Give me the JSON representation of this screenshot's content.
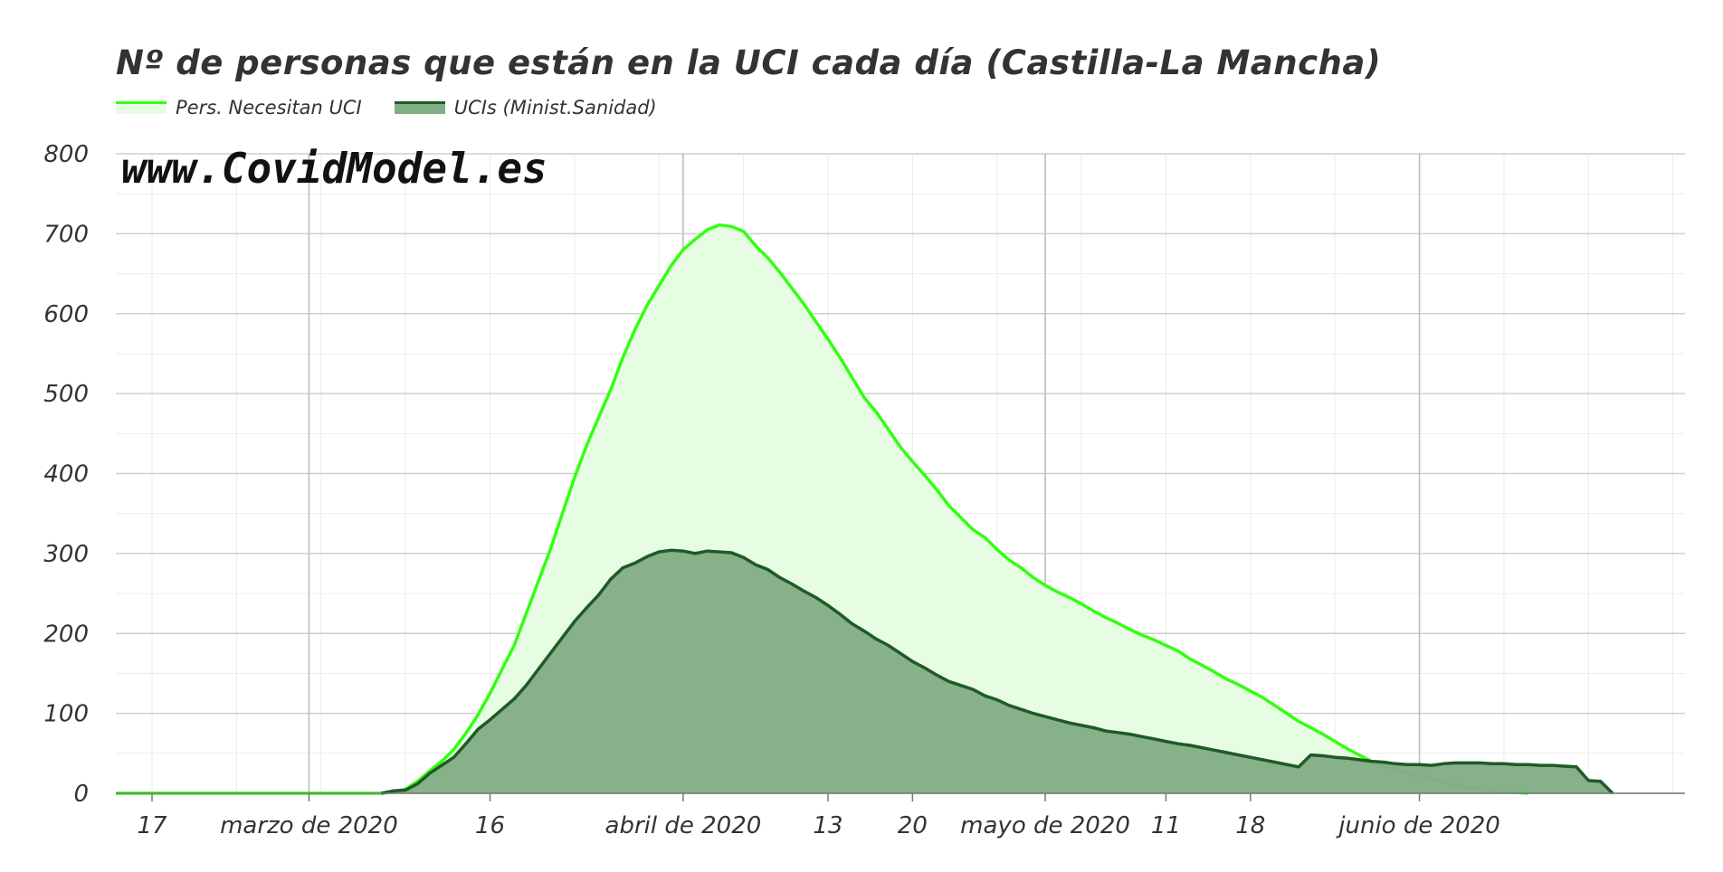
{
  "chart_data": {
    "type": "area",
    "title": "Nº de personas que están en la UCI cada día (Castilla-La Mancha)",
    "watermark": "www.CovidModel.es",
    "legend_position": "top-left",
    "grid": true,
    "ylim": [
      0,
      800
    ],
    "y_ticks": [
      0,
      100,
      200,
      300,
      400,
      500,
      600,
      700,
      800
    ],
    "xlim": [
      "2020-02-14",
      "2020-06-23"
    ],
    "x_ticks": [
      {
        "date": "2020-02-17",
        "label": "17"
      },
      {
        "date": "2020-03-01",
        "label": "marzo de 2020"
      },
      {
        "date": "2020-03-16",
        "label": "16"
      },
      {
        "date": "2020-04-01",
        "label": "abril de 2020"
      },
      {
        "date": "2020-04-13",
        "label": "13"
      },
      {
        "date": "2020-04-20",
        "label": "20"
      },
      {
        "date": "2020-05-01",
        "label": "mayo de 2020"
      },
      {
        "date": "2020-05-11",
        "label": "11"
      },
      {
        "date": "2020-05-18",
        "label": "18"
      },
      {
        "date": "2020-06-01",
        "label": "junio de 2020"
      }
    ],
    "series": [
      {
        "name": "Pers. Necesitan UCI",
        "line_color": "#33ff11",
        "fill_color": "#e6fde3",
        "points": [
          [
            "2020-02-14",
            0
          ],
          [
            "2020-03-07",
            0
          ],
          [
            "2020-03-08",
            2
          ],
          [
            "2020-03-09",
            5
          ],
          [
            "2020-03-10",
            15
          ],
          [
            "2020-03-11",
            28
          ],
          [
            "2020-03-12",
            40
          ],
          [
            "2020-03-13",
            55
          ],
          [
            "2020-03-14",
            75
          ],
          [
            "2020-03-15",
            98
          ],
          [
            "2020-03-16",
            125
          ],
          [
            "2020-03-17",
            155
          ],
          [
            "2020-03-18",
            185
          ],
          [
            "2020-03-19",
            225
          ],
          [
            "2020-03-20",
            265
          ],
          [
            "2020-03-21",
            305
          ],
          [
            "2020-03-22",
            350
          ],
          [
            "2020-03-23",
            395
          ],
          [
            "2020-03-24",
            435
          ],
          [
            "2020-03-25",
            470
          ],
          [
            "2020-03-26",
            505
          ],
          [
            "2020-03-27",
            545
          ],
          [
            "2020-03-28",
            580
          ],
          [
            "2020-03-29",
            610
          ],
          [
            "2020-03-30",
            635
          ],
          [
            "2020-03-31",
            660
          ],
          [
            "2020-04-01",
            680
          ],
          [
            "2020-04-02",
            693
          ],
          [
            "2020-04-03",
            705
          ],
          [
            "2020-04-04",
            711
          ],
          [
            "2020-04-05",
            709
          ],
          [
            "2020-04-06",
            703
          ],
          [
            "2020-04-07",
            685
          ],
          [
            "2020-04-08",
            670
          ],
          [
            "2020-04-09",
            652
          ],
          [
            "2020-04-10",
            632
          ],
          [
            "2020-04-11",
            612
          ],
          [
            "2020-04-12",
            590
          ],
          [
            "2020-04-13",
            568
          ],
          [
            "2020-04-14",
            545
          ],
          [
            "2020-04-15",
            520
          ],
          [
            "2020-04-16",
            495
          ],
          [
            "2020-04-17",
            477
          ],
          [
            "2020-04-18",
            455
          ],
          [
            "2020-04-19",
            433
          ],
          [
            "2020-04-20",
            415
          ],
          [
            "2020-04-21",
            398
          ],
          [
            "2020-04-22",
            380
          ],
          [
            "2020-04-23",
            360
          ],
          [
            "2020-04-24",
            345
          ],
          [
            "2020-04-25",
            330
          ],
          [
            "2020-04-26",
            320
          ],
          [
            "2020-04-27",
            305
          ],
          [
            "2020-04-28",
            292
          ],
          [
            "2020-04-29",
            282
          ],
          [
            "2020-04-30",
            270
          ],
          [
            "2020-05-01",
            260
          ],
          [
            "2020-05-02",
            252
          ],
          [
            "2020-05-03",
            245
          ],
          [
            "2020-05-04",
            237
          ],
          [
            "2020-05-05",
            228
          ],
          [
            "2020-05-06",
            220
          ],
          [
            "2020-05-07",
            213
          ],
          [
            "2020-05-08",
            205
          ],
          [
            "2020-05-09",
            198
          ],
          [
            "2020-05-10",
            192
          ],
          [
            "2020-05-11",
            185
          ],
          [
            "2020-05-12",
            178
          ],
          [
            "2020-05-13",
            168
          ],
          [
            "2020-05-14",
            160
          ],
          [
            "2020-05-15",
            152
          ],
          [
            "2020-05-16",
            143
          ],
          [
            "2020-05-17",
            136
          ],
          [
            "2020-05-18",
            128
          ],
          [
            "2020-05-19",
            120
          ],
          [
            "2020-05-20",
            110
          ],
          [
            "2020-05-21",
            100
          ],
          [
            "2020-05-22",
            90
          ],
          [
            "2020-05-23",
            82
          ],
          [
            "2020-05-24",
            74
          ],
          [
            "2020-05-25",
            65
          ],
          [
            "2020-05-26",
            56
          ],
          [
            "2020-05-27",
            48
          ],
          [
            "2020-05-28",
            40
          ],
          [
            "2020-05-29",
            34
          ],
          [
            "2020-05-30",
            30
          ],
          [
            "2020-05-31",
            26
          ],
          [
            "2020-06-01",
            22
          ],
          [
            "2020-06-02",
            18
          ],
          [
            "2020-06-03",
            14
          ],
          [
            "2020-06-04",
            10
          ],
          [
            "2020-06-05",
            7
          ],
          [
            "2020-06-06",
            5
          ],
          [
            "2020-06-07",
            3
          ],
          [
            "2020-06-08",
            2
          ],
          [
            "2020-06-09",
            1
          ],
          [
            "2020-06-10",
            0
          ]
        ]
      },
      {
        "name": "UCIs (Minist.Sanidad)",
        "line_color": "#1f5a27",
        "fill_color": "#82ae86",
        "points": [
          [
            "2020-03-07",
            0
          ],
          [
            "2020-03-08",
            3
          ],
          [
            "2020-03-09",
            4
          ],
          [
            "2020-03-10",
            12
          ],
          [
            "2020-03-11",
            25
          ],
          [
            "2020-03-12",
            35
          ],
          [
            "2020-03-13",
            45
          ],
          [
            "2020-03-14",
            62
          ],
          [
            "2020-03-15",
            80
          ],
          [
            "2020-03-16",
            92
          ],
          [
            "2020-03-17",
            105
          ],
          [
            "2020-03-18",
            118
          ],
          [
            "2020-03-19",
            135
          ],
          [
            "2020-03-20",
            155
          ],
          [
            "2020-03-21",
            175
          ],
          [
            "2020-03-22",
            195
          ],
          [
            "2020-03-23",
            215
          ],
          [
            "2020-03-24",
            232
          ],
          [
            "2020-03-25",
            248
          ],
          [
            "2020-03-26",
            268
          ],
          [
            "2020-03-27",
            282
          ],
          [
            "2020-03-28",
            288
          ],
          [
            "2020-03-29",
            296
          ],
          [
            "2020-03-30",
            302
          ],
          [
            "2020-03-31",
            304
          ],
          [
            "2020-04-01",
            303
          ],
          [
            "2020-04-02",
            300
          ],
          [
            "2020-04-03",
            303
          ],
          [
            "2020-04-04",
            302
          ],
          [
            "2020-04-05",
            301
          ],
          [
            "2020-04-06",
            295
          ],
          [
            "2020-04-07",
            286
          ],
          [
            "2020-04-08",
            280
          ],
          [
            "2020-04-09",
            270
          ],
          [
            "2020-04-10",
            262
          ],
          [
            "2020-04-11",
            253
          ],
          [
            "2020-04-12",
            245
          ],
          [
            "2020-04-13",
            235
          ],
          [
            "2020-04-14",
            224
          ],
          [
            "2020-04-15",
            212
          ],
          [
            "2020-04-16",
            203
          ],
          [
            "2020-04-17",
            193
          ],
          [
            "2020-04-18",
            185
          ],
          [
            "2020-04-19",
            175
          ],
          [
            "2020-04-20",
            165
          ],
          [
            "2020-04-21",
            157
          ],
          [
            "2020-04-22",
            148
          ],
          [
            "2020-04-23",
            140
          ],
          [
            "2020-04-24",
            135
          ],
          [
            "2020-04-25",
            130
          ],
          [
            "2020-04-26",
            122
          ],
          [
            "2020-04-27",
            117
          ],
          [
            "2020-04-28",
            110
          ],
          [
            "2020-04-29",
            105
          ],
          [
            "2020-04-30",
            100
          ],
          [
            "2020-05-01",
            96
          ],
          [
            "2020-05-02",
            92
          ],
          [
            "2020-05-03",
            88
          ],
          [
            "2020-05-04",
            85
          ],
          [
            "2020-05-05",
            82
          ],
          [
            "2020-05-06",
            78
          ],
          [
            "2020-05-07",
            76
          ],
          [
            "2020-05-08",
            74
          ],
          [
            "2020-05-09",
            71
          ],
          [
            "2020-05-10",
            68
          ],
          [
            "2020-05-11",
            65
          ],
          [
            "2020-05-12",
            62
          ],
          [
            "2020-05-13",
            60
          ],
          [
            "2020-05-14",
            57
          ],
          [
            "2020-05-15",
            54
          ],
          [
            "2020-05-16",
            51
          ],
          [
            "2020-05-17",
            48
          ],
          [
            "2020-05-18",
            45
          ],
          [
            "2020-05-19",
            42
          ],
          [
            "2020-05-20",
            39
          ],
          [
            "2020-05-21",
            36
          ],
          [
            "2020-05-22",
            33
          ],
          [
            "2020-05-23",
            48
          ],
          [
            "2020-05-24",
            47
          ],
          [
            "2020-05-25",
            45
          ],
          [
            "2020-05-26",
            44
          ],
          [
            "2020-05-27",
            42
          ],
          [
            "2020-05-28",
            40
          ],
          [
            "2020-05-29",
            39
          ],
          [
            "2020-05-30",
            37
          ],
          [
            "2020-05-31",
            36
          ],
          [
            "2020-06-01",
            36
          ],
          [
            "2020-06-02",
            35
          ],
          [
            "2020-06-03",
            37
          ],
          [
            "2020-06-04",
            38
          ],
          [
            "2020-06-05",
            38
          ],
          [
            "2020-06-06",
            38
          ],
          [
            "2020-06-07",
            37
          ],
          [
            "2020-06-08",
            37
          ],
          [
            "2020-06-09",
            36
          ],
          [
            "2020-06-10",
            36
          ],
          [
            "2020-06-11",
            35
          ],
          [
            "2020-06-12",
            35
          ],
          [
            "2020-06-13",
            34
          ],
          [
            "2020-06-14",
            33
          ],
          [
            "2020-06-15",
            16
          ],
          [
            "2020-06-16",
            15
          ],
          [
            "2020-06-17",
            0
          ]
        ]
      }
    ]
  }
}
